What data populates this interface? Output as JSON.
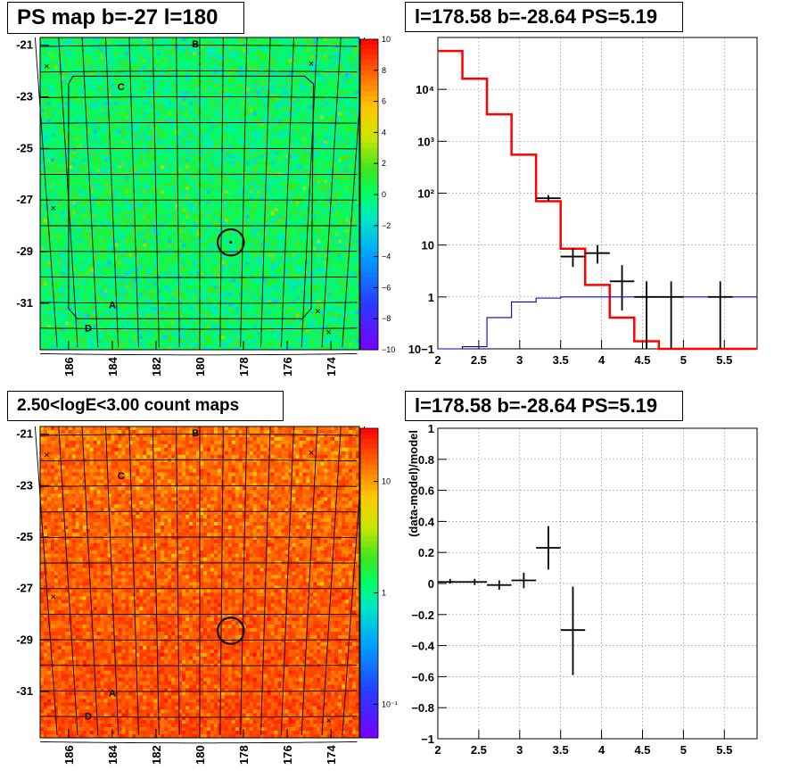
{
  "panels": {
    "ps_map": {
      "title": "PS map b=-27 l=180"
    },
    "spectrum": {
      "title": "l=178.58 b=-28.64 PS=5.19"
    },
    "count_map": {
      "title": "2.50<logE<3.00 count maps"
    },
    "residual": {
      "title": "l=178.58 b=-28.64 PS=5.19"
    }
  },
  "chart_data": [
    {
      "type": "heatmap",
      "name": "ps_map",
      "title": "PS map b=-27 l=180",
      "x_tick_labels": [
        "186",
        "184",
        "182",
        "180",
        "178",
        "176",
        "174"
      ],
      "x_ticks": [
        186,
        184,
        182,
        180,
        178,
        176,
        174
      ],
      "xlim": [
        187.3,
        172.7
      ],
      "y_tick_labels": [
        "-21",
        "-23",
        "-25",
        "-27",
        "-29",
        "-31"
      ],
      "y_ticks": [
        -21,
        -23,
        -25,
        -27,
        -29,
        -31
      ],
      "ylim": [
        -32.8,
        -20.7
      ],
      "colorbar": {
        "labels": [
          "10",
          "8",
          "6",
          "4",
          "2",
          "0",
          "−2",
          "−4",
          "−6",
          "−8",
          "−10"
        ],
        "values": [
          10,
          8,
          6,
          4,
          2,
          0,
          -2,
          -4,
          -6,
          -8,
          -10
        ],
        "range": [
          -10,
          10
        ]
      },
      "fill_level": 0,
      "source_labels": [
        {
          "text": "B",
          "l": 180.2,
          "b": -20.95
        },
        {
          "text": "C",
          "l": 183.6,
          "b": -22.6
        },
        {
          "text": "A",
          "l": 184.0,
          "b": -31.05
        },
        {
          "text": "D",
          "l": 185.1,
          "b": -31.95
        }
      ],
      "markers": [
        {
          "symbol": "×",
          "l": 187.0,
          "b": -21.8
        },
        {
          "symbol": "×",
          "l": 174.9,
          "b": -21.7
        },
        {
          "symbol": "×",
          "l": 186.7,
          "b": -27.3
        },
        {
          "symbol": "×",
          "l": 174.6,
          "b": -31.3
        },
        {
          "symbol": "×",
          "l": 174.1,
          "b": -32.1
        }
      ],
      "circle": {
        "l": 178.58,
        "b": -28.64,
        "radius_deg": 0.6
      }
    },
    {
      "type": "line",
      "name": "spectrum",
      "title": "l=178.58 b=-28.64 PS=5.19",
      "xlim": [
        2,
        5.9
      ],
      "ylim": [
        0.1,
        100000
      ],
      "y_scale": "log",
      "grid": true,
      "x_tick_labels": [
        "2",
        "2.5",
        "3",
        "3.5",
        "4",
        "4.5",
        "5",
        "5.5"
      ],
      "x_ticks": [
        2,
        2.5,
        3,
        3.5,
        4,
        4.5,
        5,
        5.5
      ],
      "y_tick_labels": [
        "10−1",
        "1",
        "10",
        "10²",
        "10³",
        "10⁴"
      ],
      "y_ticks": [
        0.1,
        1,
        10,
        100,
        1000,
        10000
      ],
      "series": [
        {
          "color": "#ff0000",
          "bins": [
            [
              2.0,
              2.3,
              55000
            ],
            [
              2.3,
              2.6,
              16000
            ],
            [
              2.6,
              2.9,
              3300
            ],
            [
              2.9,
              3.2,
              550
            ],
            [
              3.2,
              3.5,
              70
            ],
            [
              3.5,
              3.8,
              8.5
            ],
            [
              3.8,
              4.1,
              1.7
            ],
            [
              4.1,
              4.4,
              0.4
            ],
            [
              4.4,
              4.7,
              0.14
            ],
            [
              4.7,
              5.9,
              0.1
            ]
          ]
        },
        {
          "color": "#0000cc",
          "bins": [
            [
              2.0,
              2.3,
              0.1
            ],
            [
              2.3,
              2.6,
              0.11
            ],
            [
              2.6,
              2.9,
              0.4
            ],
            [
              2.9,
              3.2,
              0.8
            ],
            [
              3.2,
              3.5,
              0.95
            ],
            [
              3.5,
              5.9,
              1.0
            ]
          ]
        },
        {
          "color": "#000000",
          "points": [
            {
              "x": 3.35,
              "y": 80,
              "xerr": 0.15,
              "ylo": 70,
              "yhi": 92
            },
            {
              "x": 3.65,
              "y": 6,
              "xerr": 0.15,
              "ylo": 3.8,
              "yhi": 8.7
            },
            {
              "x": 3.95,
              "y": 7,
              "xerr": 0.15,
              "ylo": 4.4,
              "yhi": 10
            },
            {
              "x": 4.25,
              "y": 2,
              "xerr": 0.15,
              "ylo": 0.55,
              "yhi": 4.1
            },
            {
              "x": 4.55,
              "y": 1,
              "xerr": 0.15,
              "ylo": 0.1,
              "yhi": 2
            },
            {
              "x": 4.85,
              "y": 1,
              "xerr": 0.15,
              "ylo": 0.1,
              "yhi": 2
            },
            {
              "x": 5.45,
              "y": 1,
              "xerr": 0.15,
              "ylo": 0.1,
              "yhi": 2
            }
          ]
        }
      ]
    },
    {
      "type": "heatmap",
      "name": "count_map",
      "title": "2.50<logE<3.00 count maps",
      "x_tick_labels": [
        "186",
        "184",
        "182",
        "180",
        "178",
        "176",
        "174"
      ],
      "x_ticks": [
        186,
        184,
        182,
        180,
        178,
        176,
        174
      ],
      "xlim": [
        187.3,
        172.7
      ],
      "y_tick_labels": [
        "-21",
        "-23",
        "-25",
        "-27",
        "-29",
        "-31"
      ],
      "y_ticks": [
        -21,
        -23,
        -25,
        -27,
        -29,
        -31
      ],
      "ylim": [
        -32.8,
        -20.7
      ],
      "colorbar": {
        "labels": [
          "10",
          "1",
          "10⁻¹"
        ],
        "values": [
          10,
          1,
          0.1
        ],
        "scale": "log",
        "range": [
          0.05,
          30
        ]
      },
      "typical_counts": 14,
      "source_labels": [
        {
          "text": "B",
          "l": 180.2,
          "b": -20.95
        },
        {
          "text": "C",
          "l": 183.6,
          "b": -22.6
        },
        {
          "text": "A",
          "l": 184.0,
          "b": -31.05
        },
        {
          "text": "D",
          "l": 185.1,
          "b": -31.95
        }
      ],
      "markers": [
        {
          "symbol": "×",
          "l": 187.0,
          "b": -21.8
        },
        {
          "symbol": "×",
          "l": 174.9,
          "b": -21.7
        },
        {
          "symbol": "×",
          "l": 186.7,
          "b": -27.3
        },
        {
          "symbol": "×",
          "l": 174.1,
          "b": -32.1
        }
      ],
      "circle": {
        "l": 178.58,
        "b": -28.64,
        "radius_deg": 0.6
      }
    },
    {
      "type": "scatter",
      "name": "residual",
      "title": "l=178.58 b=-28.64 PS=5.19",
      "ylabel": "(data-model)/model",
      "xlim": [
        2,
        5.9
      ],
      "ylim": [
        -1,
        1
      ],
      "grid": true,
      "x_tick_labels": [
        "2",
        "2.5",
        "3",
        "3.5",
        "4",
        "4.5",
        "5",
        "5.5"
      ],
      "x_ticks": [
        2,
        2.5,
        3,
        3.5,
        4,
        4.5,
        5,
        5.5
      ],
      "y_tick_labels": [
        "−1",
        "−0.8",
        "−0.6",
        "−0.4",
        "−0.2",
        "0",
        "0.2",
        "0.4",
        "0.6",
        "0.8",
        "1"
      ],
      "y_ticks": [
        -1,
        -0.8,
        -0.6,
        -0.4,
        -0.2,
        0,
        0.2,
        0.4,
        0.6,
        0.8,
        1
      ],
      "points": [
        {
          "x": 2.15,
          "y": 0.01,
          "xerr": 0.15,
          "ylo": 0.0,
          "yhi": 0.03
        },
        {
          "x": 2.45,
          "y": 0.01,
          "xerr": 0.15,
          "ylo": -0.01,
          "yhi": 0.03
        },
        {
          "x": 2.75,
          "y": -0.01,
          "xerr": 0.15,
          "ylo": -0.04,
          "yhi": 0.02
        },
        {
          "x": 3.05,
          "y": 0.02,
          "xerr": 0.15,
          "ylo": -0.03,
          "yhi": 0.07
        },
        {
          "x": 3.35,
          "y": 0.23,
          "xerr": 0.15,
          "ylo": 0.09,
          "yhi": 0.37
        },
        {
          "x": 3.65,
          "y": -0.3,
          "xerr": 0.15,
          "ylo": -0.59,
          "yhi": -0.02
        }
      ]
    }
  ]
}
